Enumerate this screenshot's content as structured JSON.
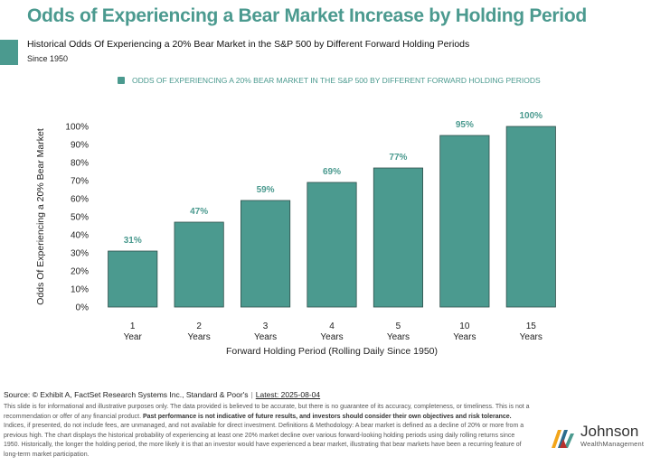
{
  "header": {
    "title": "Odds of Experiencing a Bear Market Increase by Holding Period",
    "subtitle": "Historical Odds Of Experiencing a 20% Bear Market in the S&P 500 by Different Forward Holding Periods",
    "since": "Since 1950"
  },
  "colors": {
    "accent": "#4b9a8f",
    "bar": "#4b9a8f",
    "bar_edge": "#2f4f4a"
  },
  "chart_data": {
    "type": "bar",
    "legend": "ODDS OF EXPERIENCING A 20% BEAR MARKET IN THE S&P 500 BY DIFFERENT FORWARD HOLDING PERIODS",
    "legend_position": "top",
    "categories": [
      [
        "1",
        "Year"
      ],
      [
        "2",
        "Years"
      ],
      [
        "3",
        "Years"
      ],
      [
        "4",
        "Years"
      ],
      [
        "5",
        "Years"
      ],
      [
        "10",
        "Years"
      ],
      [
        "15",
        "Years"
      ]
    ],
    "values": [
      31,
      47,
      59,
      69,
      77,
      95,
      100
    ],
    "data_labels": [
      "31%",
      "47%",
      "59%",
      "69%",
      "77%",
      "95%",
      "100%"
    ],
    "xlabel": "Forward Holding Period (Rolling Daily Since 1950)",
    "ylabel": "Odds Of Experiencing a 20% Bear Market",
    "ylim": [
      0,
      100
    ],
    "yticks": [
      "0%",
      "10%",
      "20%",
      "30%",
      "40%",
      "50%",
      "60%",
      "70%",
      "80%",
      "90%",
      "100%"
    ],
    "grid": false
  },
  "footer": {
    "source": "Source: © Exhibit A, FactSet Research Systems Inc., Standard & Poor's",
    "separator": "|",
    "latest": "Latest: 2025-08-04",
    "disclaimer_1": "This slide is for informational and illustrative purposes only. The data provided is believed to be accurate, but there is no guarantee of its accuracy, completeness, or timeliness. This is not a recommendation or offer of any financial product. ",
    "disclaimer_bold": "Past performance is not indicative of future results, and investors should consider their own objectives and risk tolerance.",
    "disclaimer_2": " Indices, if presented, do not include fees, are unmanaged, and not available for direct investment. Definitions & Methodology: A bear market is defined as a decline of 20% or more from a previous high. The chart displays the historical probability of experiencing at least one 20% market decline over various forward-looking holding periods using daily rolling returns since 1950. Historically, the longer the holding period, the more likely it is that an investor would have experienced a bear market, illustrating that bear markets have been a recurring feature of long-term market participation."
  },
  "logo": {
    "name": "Johnson",
    "sub": "WealthManagement"
  }
}
